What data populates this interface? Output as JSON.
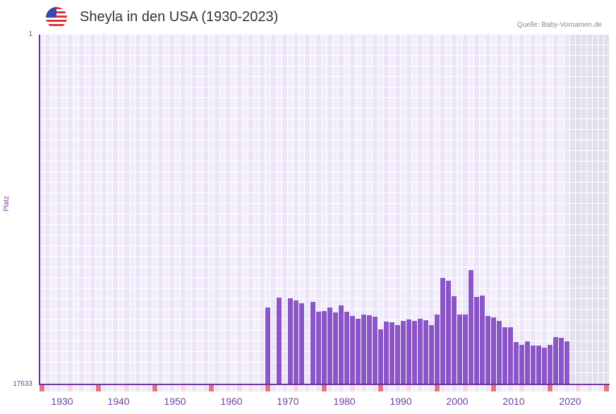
{
  "header": {
    "title": "Sheyla in den USA (1930-2023)",
    "source": "Quelle: Baby-Vornamen.de",
    "flag_icon": "us-flag-icon"
  },
  "axes": {
    "y_label": "Platz",
    "y_top": "1",
    "y_bottom": "17633",
    "x_ticks": [
      "1930",
      "1940",
      "1950",
      "1960",
      "1970",
      "1980",
      "1990",
      "2000",
      "2010",
      "2020"
    ]
  },
  "colors": {
    "bar": "#8b55c8",
    "axis": "#6a2e9e",
    "grid_a": "#f2eefb",
    "grid_b": "#ebe5f7",
    "future_shade": "#e3dfee",
    "marker_strong": "#e5737a",
    "marker_light": "#f5d6df"
  },
  "chart_data": {
    "type": "bar",
    "title": "Sheyla in den USA (1930-2023)",
    "xlabel": "",
    "ylabel": "Platz",
    "ylim": [
      17633,
      1
    ],
    "y_inverted": true,
    "grid": true,
    "x": [
      1968,
      1970,
      1972,
      1973,
      1974,
      1976,
      1977,
      1978,
      1979,
      1980,
      1981,
      1982,
      1983,
      1984,
      1985,
      1986,
      1987,
      1988,
      1989,
      1990,
      1991,
      1992,
      1993,
      1994,
      1995,
      1996,
      1997,
      1998,
      1999,
      2000,
      2001,
      2002,
      2003,
      2004,
      2005,
      2006,
      2007,
      2008,
      2009,
      2010,
      2011,
      2012,
      2013,
      2014,
      2015,
      2016,
      2017,
      2018,
      2019,
      2020,
      2021
    ],
    "values": [
      13758,
      13259,
      13296,
      13403,
      13545,
      13474,
      13971,
      13936,
      13758,
      14007,
      13651,
      13971,
      14184,
      14326,
      14113,
      14149,
      14220,
      14860,
      14469,
      14505,
      14647,
      14434,
      14362,
      14434,
      14326,
      14398,
      14647,
      14113,
      12265,
      12407,
      13189,
      14113,
      14113,
      11874,
      13225,
      13154,
      14184,
      14256,
      14434,
      14753,
      14753,
      15500,
      15642,
      15464,
      15678,
      15678,
      15785,
      15642,
      15251,
      15287,
      15464
    ]
  }
}
